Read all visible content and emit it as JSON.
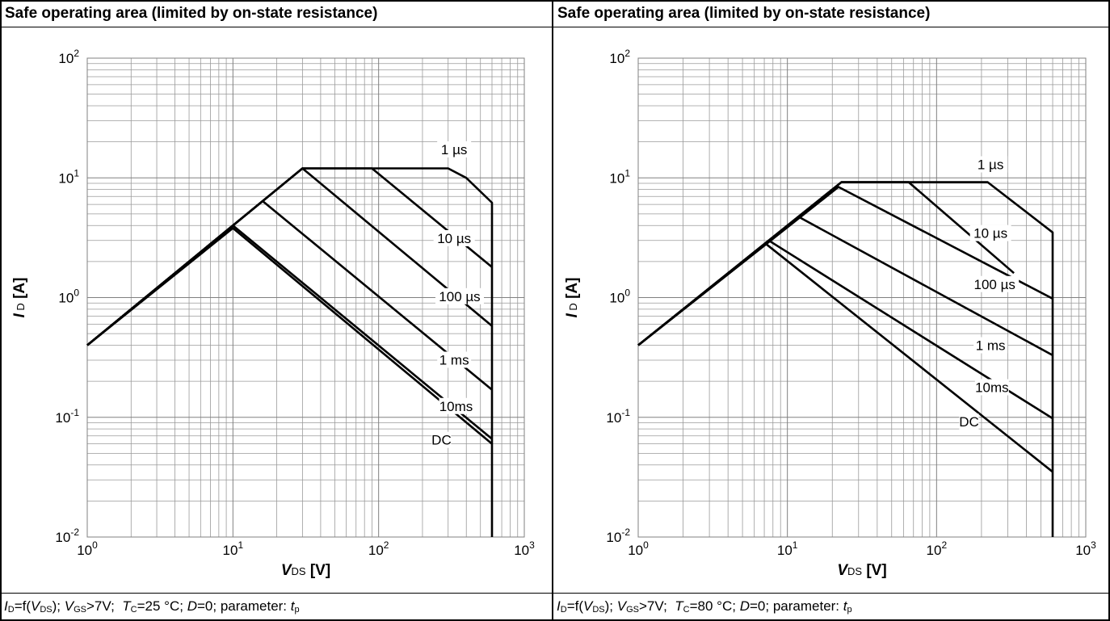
{
  "panels": [
    {
      "title": "Safe operating area (limited by on-state resistance)",
      "caption": {
        "i": "I",
        "i_sub": "D",
        "eq": "=f(",
        "v": "V",
        "v_sub": "DS",
        "close": ");",
        "vgs": "V",
        "vgs_sub": "GS",
        "vgs_val": ">7V;",
        "tc": "T",
        "tc_sub": "C",
        "tc_val": "=25 °C;",
        "d": "D",
        "d_val": "=0; parameter:",
        "tp": "t",
        "tp_sub": "p"
      }
    },
    {
      "title": "Safe operating area (limited by on-state resistance)",
      "caption": {
        "i": "I",
        "i_sub": "D",
        "eq": "=f(",
        "v": "V",
        "v_sub": "DS",
        "close": ");",
        "vgs": "V",
        "vgs_sub": "GS",
        "vgs_val": ">7V;",
        "tc": "T",
        "tc_sub": "C",
        "tc_val": "=80 °C;",
        "d": "D",
        "d_val": "=0; parameter:",
        "tp": "t",
        "tp_sub": "p"
      }
    }
  ],
  "chart_data": [
    {
      "type": "line",
      "xscale": "log",
      "yscale": "log",
      "xlim": [
        1,
        1000
      ],
      "ylim": [
        0.01,
        100
      ],
      "xlabel": {
        "main": "V",
        "sub": "DS",
        "unit": " [V]"
      },
      "ylabel": {
        "main": "I",
        "sub": "D",
        "unit": " [A]"
      },
      "xticks": [
        {
          "base": "10",
          "exp": "0"
        },
        {
          "base": "10",
          "exp": "1"
        },
        {
          "base": "10",
          "exp": "2"
        },
        {
          "base": "10",
          "exp": "3"
        }
      ],
      "yticks": [
        {
          "base": "10",
          "exp": "-2"
        },
        {
          "base": "10",
          "exp": "-1"
        },
        {
          "base": "10",
          "exp": "0"
        },
        {
          "base": "10",
          "exp": "1"
        },
        {
          "base": "10",
          "exp": "2"
        }
      ],
      "grid": true,
      "series": [
        {
          "name": "1 µs",
          "points": [
            [
              1,
              0.4
            ],
            [
              30,
              12
            ],
            [
              300,
              12
            ],
            [
              400,
              10
            ],
            [
              600,
              6.2
            ],
            [
              600,
              0.01
            ]
          ],
          "label_at": [
            330,
            16
          ]
        },
        {
          "name": "10 µs",
          "points": [
            [
              1,
              0.4
            ],
            [
              30,
              12
            ],
            [
              90,
              12
            ],
            [
              600,
              1.8
            ]
          ],
          "label_at": [
            330,
            2.9
          ]
        },
        {
          "name": "100 µs",
          "points": [
            [
              1,
              0.4
            ],
            [
              30,
              12
            ],
            [
              600,
              0.58
            ]
          ],
          "label_at": [
            360,
            0.95
          ]
        },
        {
          "name": "1 ms",
          "points": [
            [
              1,
              0.4
            ],
            [
              16,
              6.4
            ],
            [
              600,
              0.17
            ]
          ],
          "label_at": [
            330,
            0.28
          ]
        },
        {
          "name": "10ms",
          "points": [
            [
              1,
              0.4
            ],
            [
              10,
              4
            ],
            [
              600,
              0.066
            ]
          ],
          "label_at": [
            340,
            0.115
          ]
        },
        {
          "name": "DC",
          "points": [
            [
              1,
              0.4
            ],
            [
              10,
              3.8
            ],
            [
              600,
              0.06
            ]
          ],
          "label_at": [
            270,
            0.06
          ]
        }
      ]
    },
    {
      "type": "line",
      "xscale": "log",
      "yscale": "log",
      "xlim": [
        1,
        1000
      ],
      "ylim": [
        0.01,
        100
      ],
      "xlabel": {
        "main": "V",
        "sub": "DS",
        "unit": " [V]"
      },
      "ylabel": {
        "main": "I",
        "sub": "D",
        "unit": " [A]"
      },
      "xticks": [
        {
          "base": "10",
          "exp": "0"
        },
        {
          "base": "10",
          "exp": "1"
        },
        {
          "base": "10",
          "exp": "2"
        },
        {
          "base": "10",
          "exp": "3"
        }
      ],
      "yticks": [
        {
          "base": "10",
          "exp": "-2"
        },
        {
          "base": "10",
          "exp": "-1"
        },
        {
          "base": "10",
          "exp": "0"
        },
        {
          "base": "10",
          "exp": "1"
        },
        {
          "base": "10",
          "exp": "2"
        }
      ],
      "grid": true,
      "series": [
        {
          "name": "1 µs",
          "points": [
            [
              1,
              0.4
            ],
            [
              23,
              9.2
            ],
            [
              220,
              9.2
            ],
            [
              600,
              3.5
            ],
            [
              600,
              0.01
            ]
          ],
          "label_at": [
            230,
            12
          ]
        },
        {
          "name": "10 µs",
          "points": [
            [
              1,
              0.4
            ],
            [
              23,
              9.2
            ],
            [
              65,
              9.2
            ],
            [
              330,
              1.6
            ]
          ],
          "label_at": [
            230,
            3.2
          ]
        },
        {
          "name": "100 µs",
          "points": [
            [
              1,
              0.4
            ],
            [
              22,
              8.4
            ],
            [
              600,
              0.98
            ]
          ],
          "label_at": [
            245,
            1.2
          ]
        },
        {
          "name": "1 ms",
          "points": [
            [
              1,
              0.4
            ],
            [
              12,
              4.7
            ],
            [
              600,
              0.33
            ]
          ],
          "label_at": [
            230,
            0.37
          ]
        },
        {
          "name": "10ms",
          "points": [
            [
              1,
              0.4
            ],
            [
              7.5,
              3
            ],
            [
              600,
              0.098
            ]
          ],
          "label_at": [
            235,
            0.165
          ]
        },
        {
          "name": "DC",
          "points": [
            [
              1,
              0.4
            ],
            [
              7.2,
              2.8
            ],
            [
              600,
              0.035
            ]
          ],
          "label_at": [
            165,
            0.085
          ]
        }
      ]
    }
  ]
}
